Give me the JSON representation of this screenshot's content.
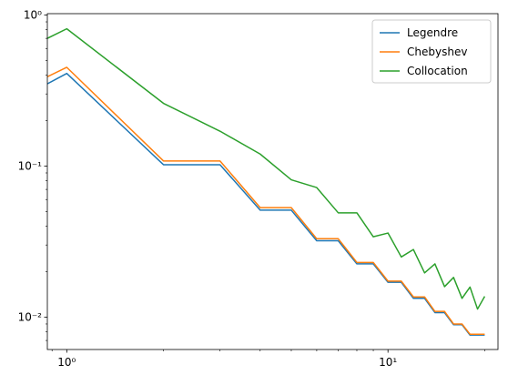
{
  "chart_data": {
    "type": "line",
    "title": "",
    "xlabel": "",
    "ylabel": "",
    "xscale": "log",
    "yscale": "log",
    "xlim": [
      0.87,
      22
    ],
    "ylim": [
      0.0061,
      1.02
    ],
    "grid": false,
    "legend_position": "top-right",
    "x_ticks": [
      {
        "value": 1,
        "label": "10⁰"
      },
      {
        "value": 10,
        "label": "10¹"
      }
    ],
    "y_ticks": [
      {
        "value": 1,
        "label": "10⁰"
      },
      {
        "value": 0.1,
        "label": "10⁻¹"
      },
      {
        "value": 0.01,
        "label": "10⁻²"
      }
    ],
    "x": [
      0.87,
      1,
      2,
      3,
      4,
      5,
      6,
      7,
      8,
      9,
      10,
      11,
      12,
      13,
      14,
      15,
      16,
      17,
      18,
      19,
      20
    ],
    "series": [
      {
        "name": "Legendre",
        "color": "#1f77b4",
        "values": [
          0.35,
          0.41,
          0.102,
          0.102,
          0.051,
          0.051,
          0.032,
          0.032,
          0.0225,
          0.0225,
          0.017,
          0.017,
          0.0133,
          0.0133,
          0.0107,
          0.0107,
          0.0089,
          0.0089,
          0.0076,
          0.0076,
          0.0076
        ]
      },
      {
        "name": "Chebyshev",
        "color": "#ff7f0e",
        "values": [
          0.39,
          0.45,
          0.108,
          0.108,
          0.053,
          0.053,
          0.033,
          0.033,
          0.023,
          0.023,
          0.0173,
          0.0173,
          0.0136,
          0.0136,
          0.0109,
          0.0109,
          0.009,
          0.009,
          0.0077,
          0.0077,
          0.0077
        ]
      },
      {
        "name": "Collocation",
        "color": "#2ca02c",
        "values": [
          0.7,
          0.81,
          0.26,
          0.17,
          0.12,
          0.081,
          0.072,
          0.049,
          0.049,
          0.034,
          0.036,
          0.025,
          0.028,
          0.0196,
          0.0225,
          0.0159,
          0.0183,
          0.0133,
          0.0158,
          0.0113,
          0.0137
        ]
      }
    ]
  }
}
